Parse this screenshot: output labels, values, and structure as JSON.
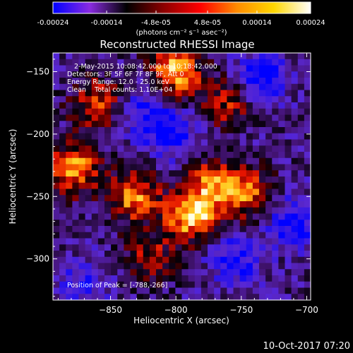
{
  "chart_data": [
    {
      "type": "colorbar",
      "ticks": [
        "-0.00024",
        "-0.00014",
        "-4.8e-05",
        "4.8e-05",
        "0.00014",
        "0.00024"
      ],
      "tick_values": [
        -0.00024,
        -0.00014,
        -4.8e-05,
        4.8e-05,
        0.00014,
        0.00024
      ],
      "range": [
        -0.00024,
        0.00024
      ],
      "label": "(photons cm⁻² s⁻¹ asec⁻²)",
      "colors": [
        "#0000ff",
        "#8a2be2",
        "#000000",
        "#8b0000",
        "#ff0000",
        "#ff8c00",
        "#ffd700",
        "#ffffff"
      ]
    },
    {
      "type": "heatmap",
      "title": "Reconstructed RHESSI Image",
      "xlabel": "Heliocentric X (arcsec)",
      "ylabel": "Heliocentric Y (arcsec)",
      "xlim": [
        -894,
        -697
      ],
      "ylim": [
        -333,
        -135
      ],
      "xticks": [
        -850,
        -800,
        -750,
        -700
      ],
      "yticks": [
        -150,
        -200,
        -250,
        -300
      ],
      "annotations": [
        "2-May-2015 10:08:42.000 to 10:18:42.000",
        "Detectors: 3F 5F 6F 7F 8F 9F, Att 0",
        "Energy Range: 12.0 - 25.0 keV",
        "Clean    Total counts: 1.10E+04"
      ],
      "peak_label": "Position of Peak = [-788,-266]",
      "peak": [
        -788,
        -266
      ],
      "bright_regions": [
        {
          "x": -788,
          "y": -266,
          "intensity": 1.0
        },
        {
          "x": -800,
          "y": -150,
          "intensity": 0.95
        },
        {
          "x": -878,
          "y": -228,
          "intensity": 0.85
        },
        {
          "x": -832,
          "y": -250,
          "intensity": 0.8
        },
        {
          "x": -772,
          "y": -240,
          "intensity": 0.7
        },
        {
          "x": -745,
          "y": -248,
          "intensity": 0.7
        },
        {
          "x": -860,
          "y": -175,
          "intensity": 0.65
        },
        {
          "x": -760,
          "y": -175,
          "intensity": 0.55
        },
        {
          "x": -820,
          "y": -300,
          "intensity": 0.5
        }
      ],
      "dark_regions": [
        {
          "x": -735,
          "y": -155,
          "intensity": -0.7
        },
        {
          "x": -710,
          "y": -270,
          "intensity": -0.6
        },
        {
          "x": -755,
          "y": -300,
          "intensity": -0.55
        },
        {
          "x": -805,
          "y": -200,
          "intensity": -0.55
        },
        {
          "x": -825,
          "y": -180,
          "intensity": -0.45
        },
        {
          "x": -870,
          "y": -320,
          "intensity": -0.4
        }
      ]
    }
  ],
  "footer": {
    "timestamp": "10-Oct-2017 07:20"
  }
}
